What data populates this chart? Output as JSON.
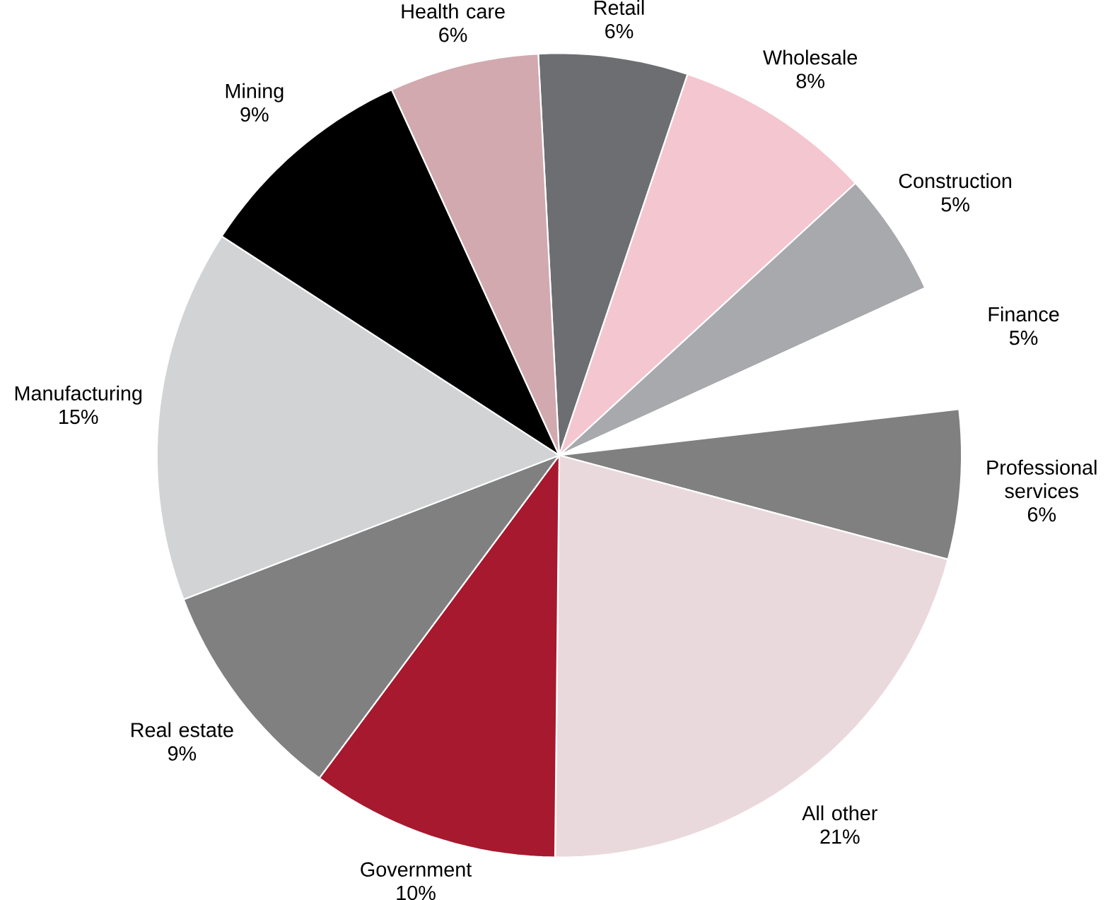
{
  "chart_data": {
    "type": "pie",
    "categories": [
      "Retail",
      "Wholesale",
      "Construction",
      "Finance",
      "Professional services",
      "All other",
      "Government",
      "Real estate",
      "Manufacturing",
      "Mining",
      "Health care"
    ],
    "values": [
      6,
      8,
      5,
      5,
      6,
      21,
      10,
      9,
      15,
      9,
      6
    ],
    "value_labels": [
      "6%",
      "8%",
      "5%",
      "5%",
      "6%",
      "21%",
      "10%",
      "9%",
      "15%",
      "9%",
      "6%"
    ],
    "colors": [
      "#6d6e71",
      "#f4c6d0",
      "#a7a9ac",
      "#ffffff",
      "#808080",
      "#ead9dc",
      "#a6192e",
      "#808080",
      "#d1d3d4",
      "#000000",
      "#d1a9ae"
    ]
  }
}
